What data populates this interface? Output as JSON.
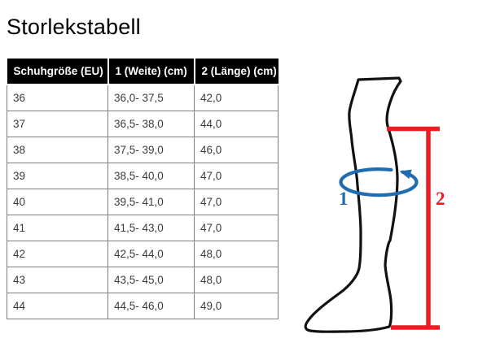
{
  "page": {
    "title": "Storlekstabell",
    "background_color": "#ffffff"
  },
  "table": {
    "columns": [
      "Schuhgröße (EU)",
      "1 (Weite) (cm)",
      "2 (Länge) (cm)"
    ],
    "rows": [
      [
        "36",
        "36,0- 37,5",
        "42,0"
      ],
      [
        "37",
        "36,5- 38,0",
        "44,0"
      ],
      [
        "38",
        "37,5- 39,0",
        "46,0"
      ],
      [
        "39",
        "38,5- 40,0",
        "47,0"
      ],
      [
        "40",
        "39,5- 41,0",
        "47,0"
      ],
      [
        "41",
        "41,5- 43,0",
        "47,0"
      ],
      [
        "42",
        "42,5- 44,0",
        "48,0"
      ],
      [
        "43",
        "43,5- 45,0",
        "48,0"
      ],
      [
        "44",
        "44,5- 46,0",
        "49,0"
      ]
    ],
    "header_bg_color": "#000000",
    "header_text_color": "#ffffff",
    "body_border_color": "#7f7f7f"
  },
  "illustration": {
    "circumference_label": "1",
    "length_label": "2",
    "circumference_color": "#1f6cb0",
    "length_color": "#ec1b24",
    "leg_outline_color": "#111111"
  }
}
